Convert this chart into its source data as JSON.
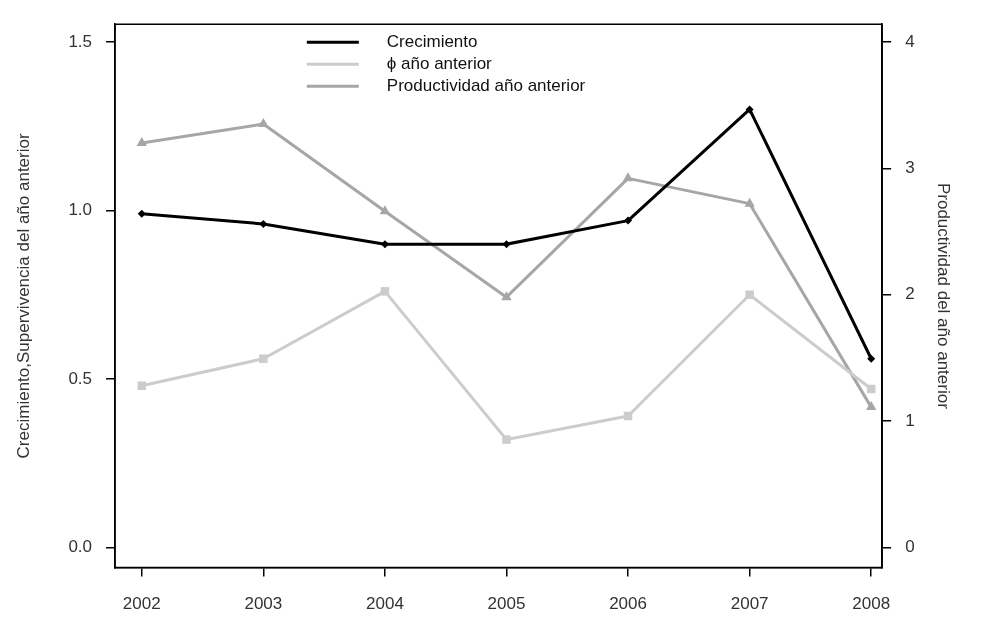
{
  "chart_data": {
    "type": "line",
    "x": [
      2002,
      2003,
      2004,
      2005,
      2006,
      2007,
      2008
    ],
    "xlim": [
      2001.78,
      2008.09
    ],
    "xticks": [
      2002,
      2003,
      2004,
      2005,
      2006,
      2007,
      2008
    ],
    "ylim": [
      -0.06,
      1.553
    ],
    "yticks": [
      {
        "value": 0,
        "label": "0.0"
      },
      {
        "value": 0.5,
        "label": "0.5"
      },
      {
        "value": 1,
        "label": "1.0"
      },
      {
        "value": 1.5,
        "label": "1.5"
      }
    ],
    "y2lim": [
      -0.16,
      4.14
    ],
    "y2ticks": [
      0,
      1,
      2,
      3,
      4
    ],
    "ylabel": "Crecimiento,Supervivencia del año anterior",
    "y2label": "Productividad del año anterior",
    "grid": false,
    "legend": "top",
    "line_style": "solid",
    "series": [
      {
        "name": "Crecimiento",
        "color": "#000000",
        "marker": "diamond",
        "values": [
          0.99,
          0.96,
          0.9,
          0.9,
          0.97,
          1.3,
          0.56
        ]
      },
      {
        "name": "ϕ año anterior",
        "color": "#cccccc",
        "marker": "square",
        "values": [
          0.48,
          0.56,
          0.76,
          0.32,
          0.39,
          0.75,
          0.47
        ]
      },
      {
        "name": "Productividad año anterior",
        "color": "#a6a6a6",
        "marker": "triangle",
        "axis": "y2",
        "values": [
          3.2,
          3.35,
          2.66,
          1.98,
          2.92,
          2.72,
          1.11
        ]
      }
    ]
  }
}
